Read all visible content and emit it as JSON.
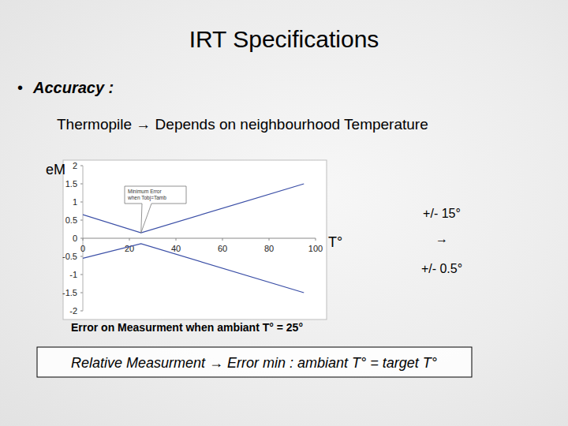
{
  "slide": {
    "title": "IRT Specifications",
    "bullet": "•",
    "heading": "Accuracy :",
    "line": "Thermopile → Depends on neighbourhood Temperature",
    "side_top": "+/- 15°",
    "side_arrow": "→",
    "side_bottom": "+/- 0.5°",
    "caption": "Error on Measurment when ambiant T° = 25°",
    "footer": "Relative Measurment → Error min : ambiant T° = target T°"
  },
  "chart_data": {
    "type": "line",
    "y_label": "eM",
    "x_label": "T°",
    "annotation": "Minimum Error when Tobj=Tamb",
    "x": [
      0,
      25,
      95
    ],
    "series": [
      {
        "color": "#3a4ea6",
        "line_style": "solid",
        "values": [
          0.65,
          0.15,
          1.5
        ]
      },
      {
        "color": "#3a4ea6",
        "line_style": "solid",
        "values": [
          -0.55,
          -0.15,
          -1.5
        ]
      }
    ],
    "xlim": [
      0,
      100
    ],
    "xticks": [
      0,
      20,
      40,
      60,
      80,
      100
    ],
    "ylim": [
      -2,
      2
    ],
    "yticks": [
      -2,
      -1.5,
      -1,
      -0.5,
      0,
      0.5,
      1,
      1.5,
      2
    ],
    "grid": false
  }
}
